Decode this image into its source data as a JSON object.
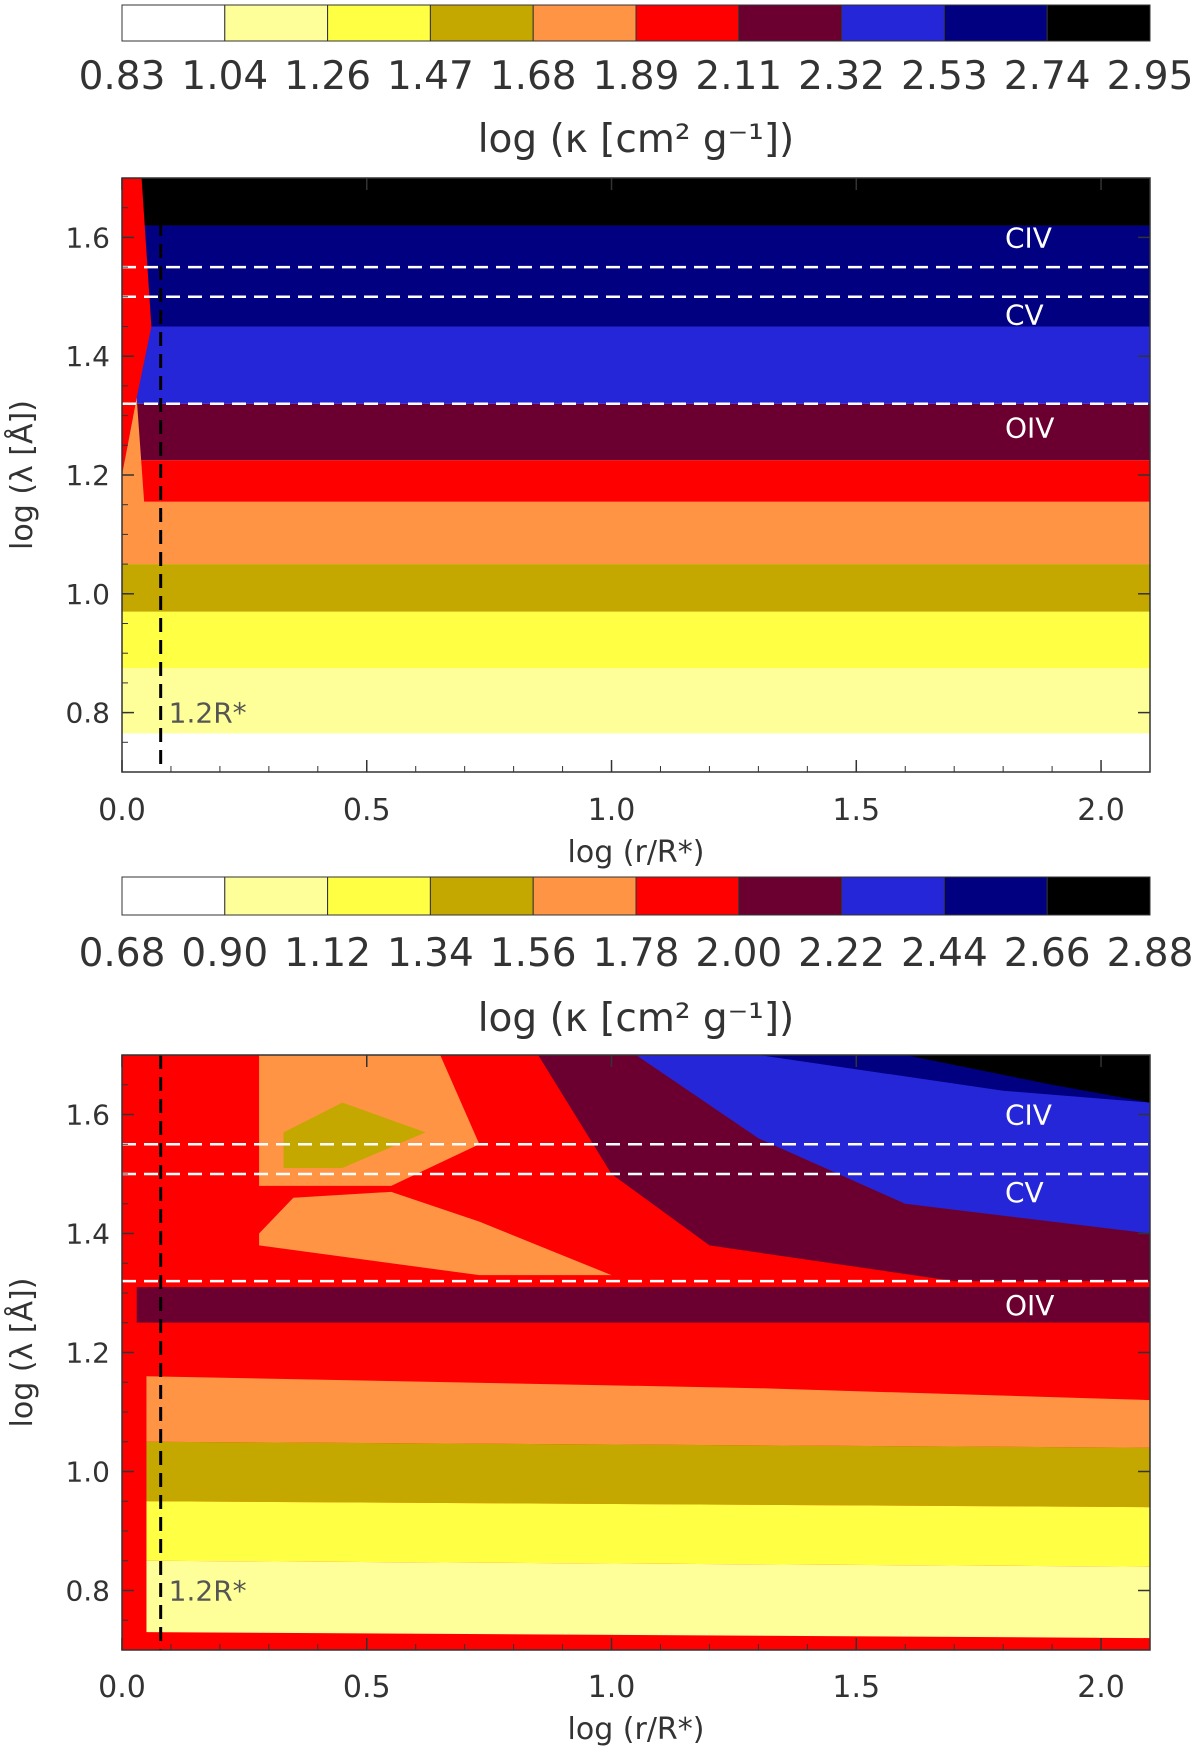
{
  "chart_data": [
    {
      "type": "heatmap",
      "plot_kind": "filled contour",
      "colorbar": {
        "levels": [
          "0.83",
          "1.04",
          "1.26",
          "1.47",
          "1.68",
          "1.89",
          "2.11",
          "2.32",
          "2.53",
          "2.74",
          "2.95"
        ],
        "colors": [
          "#ffffff",
          "#ffff99",
          "#ffff44",
          "#c4a800",
          "#ff9444",
          "#ff0000",
          "#6b0030",
          "#2626d9",
          "#000080",
          "#000000"
        ],
        "label": "log (κ [cm² g⁻¹])"
      },
      "xlabel": "log (r/R*)",
      "ylabel": "log (λ [Å])",
      "xlim": [
        0.0,
        2.1
      ],
      "ylim": [
        0.7,
        1.7
      ],
      "xticks": [
        "0.0",
        "0.5",
        "1.0",
        "1.5",
        "2.0"
      ],
      "yticks": [
        "0.8",
        "1.0",
        "1.2",
        "1.4",
        "1.6"
      ],
      "vline": {
        "x": 0.079,
        "label": "1.2R*"
      },
      "hlines": [
        {
          "y": 1.55,
          "label": "CIV"
        },
        {
          "y": 1.5,
          "label": "CV"
        },
        {
          "y": 1.32,
          "label": "OIV"
        }
      ],
      "band_boundaries_y": [
        0.765,
        0.875,
        0.97,
        1.05,
        1.155,
        1.225,
        1.32,
        1.45,
        1.62,
        1.7
      ],
      "band_color_index": [
        0,
        1,
        2,
        3,
        4,
        5,
        6,
        7,
        8,
        9
      ]
    },
    {
      "type": "heatmap",
      "plot_kind": "filled contour",
      "colorbar": {
        "levels": [
          "0.68",
          "0.90",
          "1.12",
          "1.34",
          "1.56",
          "1.78",
          "2.00",
          "2.22",
          "2.44",
          "2.66",
          "2.88"
        ],
        "colors": [
          "#ffffff",
          "#ffff99",
          "#ffff44",
          "#c4a800",
          "#ff9444",
          "#ff0000",
          "#6b0030",
          "#2626d9",
          "#000080",
          "#000000"
        ],
        "label": "log (κ [cm² g⁻¹])"
      },
      "xlabel": "log (r/R*)",
      "ylabel": "log (λ [Å])",
      "xlim": [
        0.0,
        2.1
      ],
      "ylim": [
        0.7,
        1.7
      ],
      "xticks": [
        "0.0",
        "0.5",
        "1.0",
        "1.5",
        "2.0"
      ],
      "yticks": [
        "0.8",
        "1.0",
        "1.2",
        "1.4",
        "1.6"
      ],
      "vline": {
        "x": 0.079,
        "label": "1.2R*"
      },
      "hlines": [
        {
          "y": 1.55,
          "label": "CIV"
        },
        {
          "y": 1.5,
          "label": "CV"
        },
        {
          "y": 1.32,
          "label": "OIV"
        }
      ],
      "regions": [
        {
          "color_index": 5,
          "x": [
            0.0,
            2.1,
            2.1,
            0.0
          ],
          "y": [
            0.7,
            0.7,
            1.7,
            1.7
          ]
        },
        {
          "color_index": 6,
          "x": [
            0.85,
            1.25,
            2.1,
            2.1,
            1.7,
            1.2,
            1.0
          ],
          "y": [
            1.7,
            1.7,
            1.7,
            1.32,
            1.32,
            1.38,
            1.5
          ]
        },
        {
          "color_index": 7,
          "x": [
            1.05,
            1.4,
            2.1,
            2.1,
            1.6,
            1.3
          ],
          "y": [
            1.7,
            1.7,
            1.7,
            1.4,
            1.45,
            1.56
          ]
        },
        {
          "color_index": 8,
          "x": [
            1.3,
            2.1,
            2.1,
            1.8
          ],
          "y": [
            1.7,
            1.7,
            1.62,
            1.64
          ]
        },
        {
          "color_index": 9,
          "x": [
            1.6,
            2.1,
            2.1,
            1.9
          ],
          "y": [
            1.7,
            1.7,
            1.62,
            1.65
          ]
        },
        {
          "color_index": 4,
          "x": [
            0.28,
            0.65,
            0.73,
            0.55,
            0.28
          ],
          "y": [
            1.7,
            1.7,
            1.55,
            1.48,
            1.48
          ]
        },
        {
          "color_index": 4,
          "x": [
            0.28,
            0.35,
            0.55,
            0.73,
            1.0,
            0.73,
            0.28
          ],
          "y": [
            1.4,
            1.46,
            1.47,
            1.42,
            1.33,
            1.33,
            1.38
          ]
        },
        {
          "color_index": 3,
          "x": [
            0.33,
            0.45,
            0.62,
            0.45,
            0.33
          ],
          "y": [
            1.57,
            1.62,
            1.57,
            1.51,
            1.51
          ]
        },
        {
          "color_index": 6,
          "x": [
            0.03,
            2.1,
            2.1,
            0.03
          ],
          "y": [
            1.31,
            1.31,
            1.25,
            1.25
          ]
        },
        {
          "color_index": 5,
          "x": [
            0.03,
            2.1,
            2.1,
            0.03
          ],
          "y": [
            1.25,
            1.25,
            1.19,
            1.16
          ]
        },
        {
          "color_index": 4,
          "x": [
            0.05,
            1.3,
            2.1,
            2.1,
            0.05
          ],
          "y": [
            1.16,
            1.14,
            1.12,
            1.04,
            1.05
          ]
        },
        {
          "color_index": 3,
          "x": [
            0.05,
            2.1,
            2.1,
            0.05
          ],
          "y": [
            1.05,
            1.04,
            0.94,
            0.95
          ]
        },
        {
          "color_index": 2,
          "x": [
            0.05,
            2.1,
            2.1,
            0.05
          ],
          "y": [
            0.95,
            0.94,
            0.84,
            0.85
          ]
        },
        {
          "color_index": 1,
          "x": [
            0.05,
            2.1,
            2.1,
            0.05
          ],
          "y": [
            0.85,
            0.84,
            0.72,
            0.73
          ]
        }
      ]
    }
  ]
}
